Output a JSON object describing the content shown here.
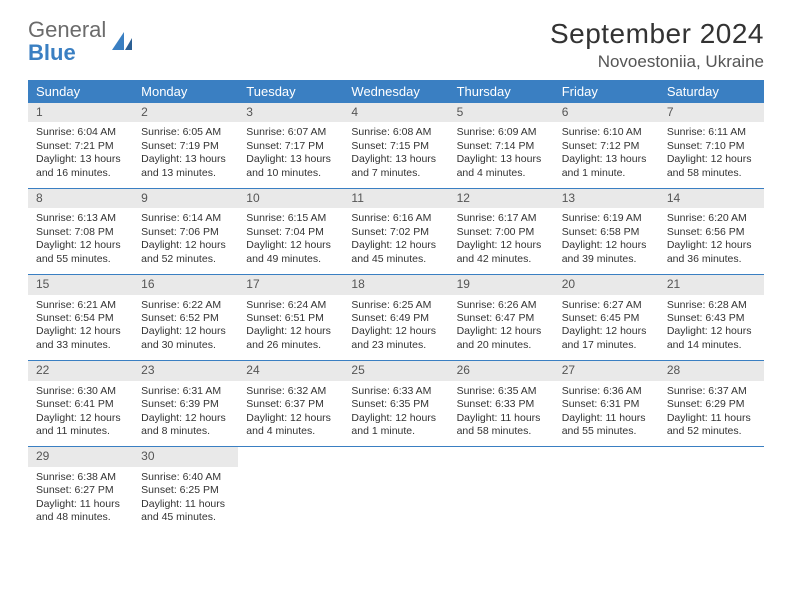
{
  "brand": {
    "name1": "General",
    "name2": "Blue"
  },
  "title": "September 2024",
  "location": "Novoestoniia, Ukraine",
  "day_names": [
    "Sunday",
    "Monday",
    "Tuesday",
    "Wednesday",
    "Thursday",
    "Friday",
    "Saturday"
  ],
  "colors": {
    "accent": "#3a7fc2",
    "header_bg": "#3a7fc2",
    "header_text": "#ffffff",
    "daynum_bg": "#e9e9e9",
    "page_bg": "#ffffff",
    "text": "#333333"
  },
  "weeks": [
    [
      {
        "n": "1",
        "sr": "Sunrise: 6:04 AM",
        "ss": "Sunset: 7:21 PM",
        "dl1": "Daylight: 13 hours",
        "dl2": "and 16 minutes."
      },
      {
        "n": "2",
        "sr": "Sunrise: 6:05 AM",
        "ss": "Sunset: 7:19 PM",
        "dl1": "Daylight: 13 hours",
        "dl2": "and 13 minutes."
      },
      {
        "n": "3",
        "sr": "Sunrise: 6:07 AM",
        "ss": "Sunset: 7:17 PM",
        "dl1": "Daylight: 13 hours",
        "dl2": "and 10 minutes."
      },
      {
        "n": "4",
        "sr": "Sunrise: 6:08 AM",
        "ss": "Sunset: 7:15 PM",
        "dl1": "Daylight: 13 hours",
        "dl2": "and 7 minutes."
      },
      {
        "n": "5",
        "sr": "Sunrise: 6:09 AM",
        "ss": "Sunset: 7:14 PM",
        "dl1": "Daylight: 13 hours",
        "dl2": "and 4 minutes."
      },
      {
        "n": "6",
        "sr": "Sunrise: 6:10 AM",
        "ss": "Sunset: 7:12 PM",
        "dl1": "Daylight: 13 hours",
        "dl2": "and 1 minute."
      },
      {
        "n": "7",
        "sr": "Sunrise: 6:11 AM",
        "ss": "Sunset: 7:10 PM",
        "dl1": "Daylight: 12 hours",
        "dl2": "and 58 minutes."
      }
    ],
    [
      {
        "n": "8",
        "sr": "Sunrise: 6:13 AM",
        "ss": "Sunset: 7:08 PM",
        "dl1": "Daylight: 12 hours",
        "dl2": "and 55 minutes."
      },
      {
        "n": "9",
        "sr": "Sunrise: 6:14 AM",
        "ss": "Sunset: 7:06 PM",
        "dl1": "Daylight: 12 hours",
        "dl2": "and 52 minutes."
      },
      {
        "n": "10",
        "sr": "Sunrise: 6:15 AM",
        "ss": "Sunset: 7:04 PM",
        "dl1": "Daylight: 12 hours",
        "dl2": "and 49 minutes."
      },
      {
        "n": "11",
        "sr": "Sunrise: 6:16 AM",
        "ss": "Sunset: 7:02 PM",
        "dl1": "Daylight: 12 hours",
        "dl2": "and 45 minutes."
      },
      {
        "n": "12",
        "sr": "Sunrise: 6:17 AM",
        "ss": "Sunset: 7:00 PM",
        "dl1": "Daylight: 12 hours",
        "dl2": "and 42 minutes."
      },
      {
        "n": "13",
        "sr": "Sunrise: 6:19 AM",
        "ss": "Sunset: 6:58 PM",
        "dl1": "Daylight: 12 hours",
        "dl2": "and 39 minutes."
      },
      {
        "n": "14",
        "sr": "Sunrise: 6:20 AM",
        "ss": "Sunset: 6:56 PM",
        "dl1": "Daylight: 12 hours",
        "dl2": "and 36 minutes."
      }
    ],
    [
      {
        "n": "15",
        "sr": "Sunrise: 6:21 AM",
        "ss": "Sunset: 6:54 PM",
        "dl1": "Daylight: 12 hours",
        "dl2": "and 33 minutes."
      },
      {
        "n": "16",
        "sr": "Sunrise: 6:22 AM",
        "ss": "Sunset: 6:52 PM",
        "dl1": "Daylight: 12 hours",
        "dl2": "and 30 minutes."
      },
      {
        "n": "17",
        "sr": "Sunrise: 6:24 AM",
        "ss": "Sunset: 6:51 PM",
        "dl1": "Daylight: 12 hours",
        "dl2": "and 26 minutes."
      },
      {
        "n": "18",
        "sr": "Sunrise: 6:25 AM",
        "ss": "Sunset: 6:49 PM",
        "dl1": "Daylight: 12 hours",
        "dl2": "and 23 minutes."
      },
      {
        "n": "19",
        "sr": "Sunrise: 6:26 AM",
        "ss": "Sunset: 6:47 PM",
        "dl1": "Daylight: 12 hours",
        "dl2": "and 20 minutes."
      },
      {
        "n": "20",
        "sr": "Sunrise: 6:27 AM",
        "ss": "Sunset: 6:45 PM",
        "dl1": "Daylight: 12 hours",
        "dl2": "and 17 minutes."
      },
      {
        "n": "21",
        "sr": "Sunrise: 6:28 AM",
        "ss": "Sunset: 6:43 PM",
        "dl1": "Daylight: 12 hours",
        "dl2": "and 14 minutes."
      }
    ],
    [
      {
        "n": "22",
        "sr": "Sunrise: 6:30 AM",
        "ss": "Sunset: 6:41 PM",
        "dl1": "Daylight: 12 hours",
        "dl2": "and 11 minutes."
      },
      {
        "n": "23",
        "sr": "Sunrise: 6:31 AM",
        "ss": "Sunset: 6:39 PM",
        "dl1": "Daylight: 12 hours",
        "dl2": "and 8 minutes."
      },
      {
        "n": "24",
        "sr": "Sunrise: 6:32 AM",
        "ss": "Sunset: 6:37 PM",
        "dl1": "Daylight: 12 hours",
        "dl2": "and 4 minutes."
      },
      {
        "n": "25",
        "sr": "Sunrise: 6:33 AM",
        "ss": "Sunset: 6:35 PM",
        "dl1": "Daylight: 12 hours",
        "dl2": "and 1 minute."
      },
      {
        "n": "26",
        "sr": "Sunrise: 6:35 AM",
        "ss": "Sunset: 6:33 PM",
        "dl1": "Daylight: 11 hours",
        "dl2": "and 58 minutes."
      },
      {
        "n": "27",
        "sr": "Sunrise: 6:36 AM",
        "ss": "Sunset: 6:31 PM",
        "dl1": "Daylight: 11 hours",
        "dl2": "and 55 minutes."
      },
      {
        "n": "28",
        "sr": "Sunrise: 6:37 AM",
        "ss": "Sunset: 6:29 PM",
        "dl1": "Daylight: 11 hours",
        "dl2": "and 52 minutes."
      }
    ],
    [
      {
        "n": "29",
        "sr": "Sunrise: 6:38 AM",
        "ss": "Sunset: 6:27 PM",
        "dl1": "Daylight: 11 hours",
        "dl2": "and 48 minutes."
      },
      {
        "n": "30",
        "sr": "Sunrise: 6:40 AM",
        "ss": "Sunset: 6:25 PM",
        "dl1": "Daylight: 11 hours",
        "dl2": "and 45 minutes."
      },
      {
        "empty": true
      },
      {
        "empty": true
      },
      {
        "empty": true
      },
      {
        "empty": true
      },
      {
        "empty": true
      }
    ]
  ]
}
